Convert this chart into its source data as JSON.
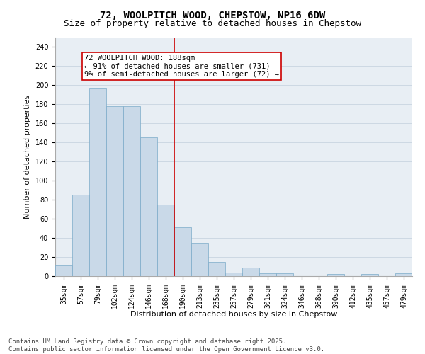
{
  "title": "72, WOOLPITCH WOOD, CHEPSTOW, NP16 6DW",
  "subtitle": "Size of property relative to detached houses in Chepstow",
  "xlabel": "Distribution of detached houses by size in Chepstow",
  "ylabel": "Number of detached properties",
  "categories": [
    "35sqm",
    "57sqm",
    "79sqm",
    "102sqm",
    "124sqm",
    "146sqm",
    "168sqm",
    "190sqm",
    "213sqm",
    "235sqm",
    "257sqm",
    "279sqm",
    "301sqm",
    "324sqm",
    "346sqm",
    "368sqm",
    "390sqm",
    "412sqm",
    "435sqm",
    "457sqm",
    "479sqm"
  ],
  "values": [
    11,
    85,
    197,
    178,
    178,
    145,
    75,
    51,
    35,
    15,
    4,
    9,
    3,
    3,
    0,
    0,
    2,
    0,
    2,
    0,
    3
  ],
  "bar_color": "#c9d9e8",
  "bar_edge_color": "#7aaac8",
  "vline_index": 7,
  "vline_color": "#cc0000",
  "annotation_text": "72 WOOLPITCH WOOD: 188sqm\n← 91% of detached houses are smaller (731)\n9% of semi-detached houses are larger (72) →",
  "annotation_box_color": "#cc0000",
  "ylim": [
    0,
    250
  ],
  "yticks": [
    0,
    20,
    40,
    60,
    80,
    100,
    120,
    140,
    160,
    180,
    200,
    220,
    240
  ],
  "grid_color": "#c8d4e0",
  "bg_color": "#e8eef4",
  "footer": "Contains HM Land Registry data © Crown copyright and database right 2025.\nContains public sector information licensed under the Open Government Licence v3.0.",
  "title_fontsize": 10,
  "subtitle_fontsize": 9,
  "axis_label_fontsize": 8,
  "tick_fontsize": 7,
  "annotation_fontsize": 7.5,
  "footer_fontsize": 6.5
}
